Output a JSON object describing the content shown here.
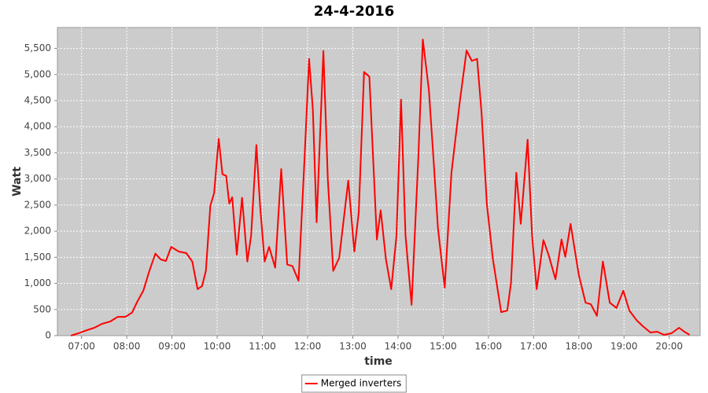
{
  "chart_data": {
    "type": "line",
    "title": "24-4-2016",
    "x_label": "time",
    "y_label": "Watt",
    "x": [
      "06:46",
      "06:56",
      "07:06",
      "07:17",
      "07:27",
      "07:38",
      "07:48",
      "07:58",
      "08:07",
      "08:14",
      "08:22",
      "08:30",
      "08:38",
      "08:45",
      "08:52",
      "08:59",
      "09:09",
      "09:19",
      "09:27",
      "09:34",
      "09:40",
      "09:45",
      "09:51",
      "09:56",
      "10:02",
      "10:07",
      "10:12",
      "10:16",
      "10:20",
      "10:26",
      "10:33",
      "10:40",
      "10:45",
      "10:52",
      "10:57",
      "11:03",
      "11:09",
      "11:17",
      "11:25",
      "11:33",
      "11:40",
      "11:48",
      "11:56",
      "12:02",
      "12:07",
      "12:12",
      "12:21",
      "12:27",
      "12:34",
      "12:42",
      "12:54",
      "13:02",
      "13:08",
      "13:15",
      "13:22",
      "13:25",
      "13:32",
      "13:37",
      "13:44",
      "13:51",
      "13:58",
      "14:04",
      "14:10",
      "14:18",
      "14:27",
      "14:33",
      "14:41",
      "14:47",
      "14:53",
      "15:02",
      "15:11",
      "15:22",
      "15:31",
      "15:38",
      "15:45",
      "15:51",
      "15:58",
      "16:06",
      "16:17",
      "16:25",
      "16:30",
      "16:37",
      "16:43",
      "16:52",
      "16:58",
      "17:04",
      "17:13",
      "17:20",
      "17:29",
      "17:37",
      "17:42",
      "17:49",
      "18:00",
      "18:09",
      "18:16",
      "18:24",
      "18:32",
      "18:41",
      "18:50",
      "18:59",
      "19:07",
      "19:17",
      "19:25",
      "19:35",
      "19:44",
      "19:53",
      "20:03",
      "20:13",
      "20:20",
      "20:27"
    ],
    "series": [
      {
        "name": "Merged inverters",
        "color": "#ff0000",
        "values": [
          0,
          45,
          100,
          150,
          225,
          270,
          360,
          360,
          440,
          650,
          860,
          1240,
          1570,
          1460,
          1430,
          1700,
          1610,
          1580,
          1420,
          890,
          950,
          1240,
          2490,
          2730,
          3770,
          3090,
          3060,
          2530,
          2650,
          1550,
          2640,
          1420,
          1910,
          3650,
          2490,
          1420,
          1700,
          1300,
          3190,
          1360,
          1330,
          1050,
          3420,
          5300,
          4330,
          2170,
          5450,
          2970,
          1240,
          1490,
          2970,
          1610,
          2370,
          5050,
          4960,
          4020,
          1840,
          2400,
          1460,
          890,
          1910,
          4520,
          1910,
          590,
          3420,
          5670,
          4700,
          3420,
          2060,
          920,
          3120,
          4480,
          5460,
          5260,
          5300,
          4250,
          2520,
          1460,
          450,
          480,
          1010,
          3120,
          2140,
          3750,
          1910,
          890,
          1830,
          1540,
          1080,
          1840,
          1510,
          2140,
          1160,
          630,
          600,
          380,
          1420,
          630,
          530,
          860,
          480,
          290,
          180,
          60,
          75,
          15,
          45,
          150,
          75,
          15
        ]
      }
    ],
    "xlim": [
      "06:28",
      "20:41"
    ],
    "xticks": [
      "07:00",
      "08:00",
      "09:00",
      "10:00",
      "11:00",
      "12:00",
      "13:00",
      "14:00",
      "15:00",
      "16:00",
      "17:00",
      "18:00",
      "19:00",
      "20:00"
    ],
    "ylim": [
      0,
      5900
    ],
    "yticks": [
      0,
      500,
      {
        "value": 1000,
        "label": "1,000"
      },
      {
        "value": 1500,
        "label": "1,500"
      },
      {
        "value": 2000,
        "label": "2,000"
      },
      {
        "value": 2500,
        "label": "2,500"
      },
      {
        "value": 3000,
        "label": "3,000"
      },
      {
        "value": 3500,
        "label": "3,500"
      },
      {
        "value": 4000,
        "label": "4,000"
      },
      {
        "value": 4500,
        "label": "4,500"
      },
      {
        "value": 5000,
        "label": "5,000"
      },
      {
        "value": 5500,
        "label": "5,500"
      }
    ],
    "grid": true,
    "legend": "bottom"
  }
}
